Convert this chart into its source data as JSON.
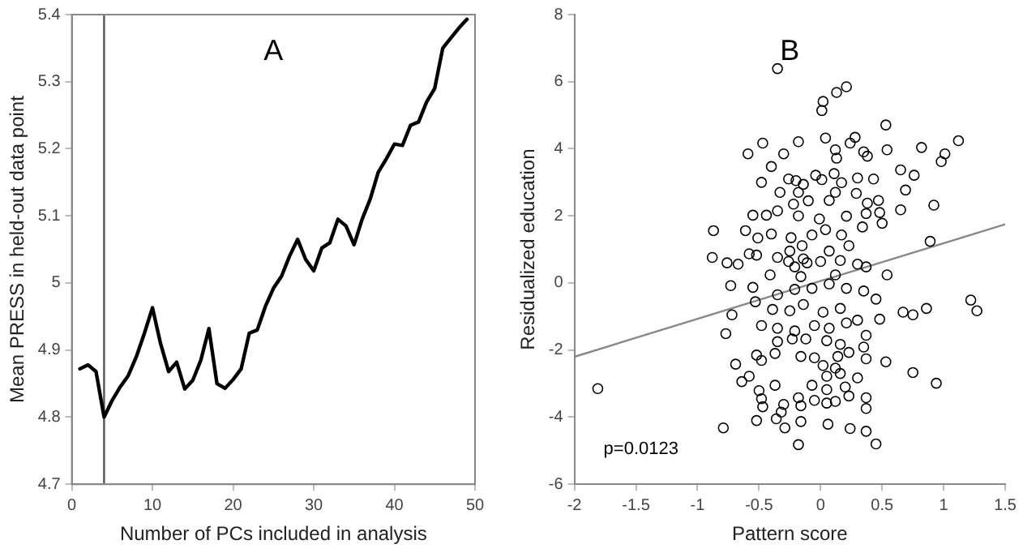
{
  "chart_data": [
    {
      "type": "line",
      "title": "A",
      "xlabel": "Number of PCs included in analysis",
      "ylabel": "Mean PRESS in held-out data point",
      "x": [
        1,
        2,
        3,
        4,
        5,
        6,
        7,
        8,
        9,
        10,
        11,
        12,
        13,
        14,
        15,
        16,
        17,
        18,
        19,
        20,
        21,
        22,
        23,
        24,
        25,
        26,
        27,
        28,
        29,
        30,
        31,
        32,
        33,
        34,
        35,
        36,
        37,
        38,
        39,
        40,
        41,
        42,
        43,
        44,
        45,
        46,
        47,
        48,
        49
      ],
      "series": [
        {
          "color": "#000000",
          "values": [
            4.872,
            4.878,
            4.868,
            4.8,
            4.825,
            4.845,
            4.862,
            4.89,
            4.925,
            4.963,
            4.91,
            4.868,
            4.882,
            4.842,
            4.855,
            4.885,
            4.932,
            4.85,
            4.843,
            4.856,
            4.872,
            4.925,
            4.93,
            4.965,
            4.992,
            5.01,
            5.04,
            5.065,
            5.035,
            5.018,
            5.052,
            5.06,
            5.095,
            5.085,
            5.057,
            5.095,
            5.125,
            5.165,
            5.185,
            5.207,
            5.205,
            5.235,
            5.24,
            5.27,
            5.29,
            5.35,
            5.365,
            5.38,
            5.393
          ]
        }
      ],
      "xlim": [
        0,
        50
      ],
      "xticks": [
        0,
        10,
        20,
        30,
        40,
        50
      ],
      "ylim": [
        4.7,
        5.4
      ],
      "yticks": [
        4.7,
        4.8,
        4.9,
        5,
        5.1,
        5.2,
        5.3,
        5.4
      ],
      "ref_lines": [
        {
          "axis": "x",
          "value": 4,
          "color": "#555555"
        }
      ]
    },
    {
      "type": "scatter",
      "title": "B",
      "xlabel": "Pattern score",
      "ylabel": "Residualized education",
      "annotations": [
        "p=0.0123"
      ],
      "series": [
        {
          "type": "scatter",
          "color": "#000000",
          "marker": "circle",
          "x": [
            -0.35,
            0.02,
            0.01,
            0.13,
            0.21,
            -0.59,
            -0.47,
            -0.3,
            -0.18,
            0.04,
            0.12,
            0.13,
            0.28,
            0.24,
            0.35,
            0.38,
            0.53,
            0.54,
            0.82,
            1.01,
            1.12,
            0.98,
            0.76,
            0.65,
            0.69,
            0.92,
            0.65,
            0.89,
            -0.4,
            -0.48,
            -0.26,
            -0.2,
            -0.14,
            -0.04,
            0.01,
            0.11,
            0.17,
            0.3,
            0.43,
            -0.33,
            -0.18,
            0.12,
            0.29,
            -0.22,
            -0.1,
            0.07,
            0.38,
            0.47,
            -0.35,
            -0.55,
            -0.44,
            -0.18,
            -0.01,
            0.21,
            0.37,
            0.48,
            -0.87,
            -0.61,
            -0.51,
            -0.4,
            -0.24,
            -0.07,
            0.04,
            0.17,
            0.34,
            0.5,
            -0.58,
            -0.52,
            -0.25,
            -0.15,
            0.07,
            0.23,
            -0.88,
            -0.76,
            -0.67,
            -0.35,
            -0.26,
            -0.14,
            0,
            0.16,
            0.3,
            0.37,
            -0.21,
            -0.11,
            -0.73,
            -0.55,
            -0.41,
            -0.16,
            0.12,
            0.54,
            -0.53,
            -0.35,
            -0.21,
            -0.07,
            0.07,
            0.21,
            0.35,
            0.45,
            -0.72,
            -0.39,
            -0.25,
            -0.14,
            0.02,
            0.16,
            0.3,
            0.48,
            0.67,
            0.75,
            0.86,
            1.22,
            1.27,
            -0.77,
            -0.48,
            -0.35,
            -0.21,
            -0.05,
            0.07,
            0.21,
            0.37,
            -0.35,
            -0.23,
            -0.12,
            0.05,
            0.16,
            0.35,
            -0.52,
            -0.37,
            -0.16,
            -0.05,
            0.14,
            0.23,
            0.37,
            0.53,
            -0.69,
            -0.48,
            0.02,
            0.12,
            -0.64,
            -0.58,
            0.05,
            0.16,
            0.3,
            0.75,
            0.94,
            -1.81,
            -0.37,
            -0.07,
            0.05,
            0.2,
            -0.5,
            -0.48,
            -0.18,
            -0.05,
            0.12,
            0.23,
            0.37,
            -0.47,
            -0.3,
            -0.16,
            0.05,
            0.37,
            -0.52,
            -0.36,
            -0.32,
            -0.16,
            0.06,
            -0.79,
            -0.29,
            0.24,
            0.37,
            -0.18,
            0.45
          ],
          "values": [
            6.39,
            5.41,
            5.14,
            5.68,
            5.85,
            3.85,
            4.17,
            3.85,
            4.21,
            4.32,
            3.97,
            3.72,
            4.34,
            4.17,
            3.91,
            3.78,
            4.71,
            3.97,
            4.04,
            3.85,
            4.24,
            3.62,
            3.21,
            3.37,
            2.77,
            2.32,
            2.18,
            1.24,
            3.47,
            3,
            3.1,
            3.05,
            2.94,
            3.21,
            3.08,
            3.26,
            2.99,
            3.13,
            3.1,
            2.7,
            2.7,
            2.7,
            2.67,
            2.35,
            2.45,
            2.46,
            2.38,
            2.46,
            2.15,
            2.02,
            2.02,
            2,
            1.91,
            1.99,
            2.07,
            2.1,
            1.56,
            1.56,
            1.34,
            1.46,
            1.35,
            1.43,
            1.59,
            1.43,
            1.67,
            1.78,
            0.87,
            0.83,
            0.95,
            1.11,
            0.95,
            1.11,
            0.76,
            0.6,
            0.56,
            0.76,
            0.64,
            0.72,
            0.64,
            0.67,
            0.56,
            0.48,
            0.48,
            0.6,
            -0.08,
            -0.13,
            0.24,
            0.19,
            0.24,
            0.24,
            -0.56,
            -0.35,
            -0.19,
            -0.16,
            -0.03,
            -0.16,
            -0.24,
            -0.48,
            -0.95,
            -0.79,
            -0.83,
            -0.64,
            -0.87,
            -0.76,
            -1.11,
            -1.08,
            -0.87,
            -0.95,
            -0.76,
            -0.51,
            -0.83,
            -1.51,
            -1.27,
            -1.35,
            -1.43,
            -1.27,
            -1.35,
            -1.19,
            -1.56,
            -1.75,
            -1.67,
            -1.67,
            -1.72,
            -1.83,
            -1.91,
            -2.15,
            -2.1,
            -2.19,
            -2.23,
            -2.19,
            -2.07,
            -2.26,
            -2.35,
            -2.42,
            -2.31,
            -2.46,
            -2.54,
            -2.94,
            -2.78,
            -2.78,
            -2.7,
            -2.83,
            -2.67,
            -2.99,
            -3.15,
            -3.05,
            -3.05,
            -3.18,
            -3.1,
            -3.21,
            -3.45,
            -3.42,
            -3.5,
            -3.53,
            -3.37,
            -3.42,
            -3.69,
            -3.62,
            -3.66,
            -3.58,
            -3.74,
            -4.1,
            -4.05,
            -3.85,
            -4.13,
            -4.21,
            -4.32,
            -4.32,
            -4.34,
            -4.42,
            -4.82,
            -4.8
          ]
        },
        {
          "type": "line",
          "color": "#888888",
          "marker": "none",
          "x": [
            -2,
            1.5
          ],
          "values": [
            -2.2,
            1.75
          ]
        }
      ],
      "xlim": [
        -2,
        1.5
      ],
      "xticks": [
        -2,
        -1.5,
        -1,
        -0.5,
        0,
        0.5,
        1,
        1.5
      ],
      "ylim": [
        -6,
        8
      ],
      "yticks": [
        -6,
        -4,
        -2,
        0,
        2,
        4,
        6,
        8
      ]
    }
  ]
}
